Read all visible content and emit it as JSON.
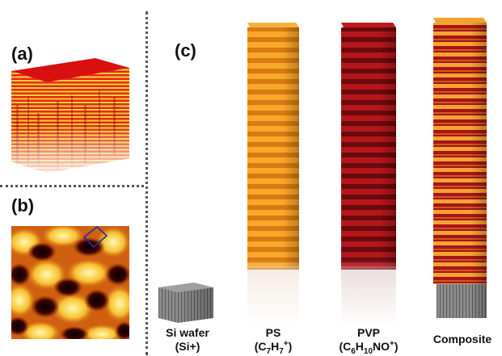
{
  "panels": {
    "a": {
      "label": "(a)",
      "top_color": "#d01010",
      "layer_light": "#ffcc33",
      "layer_dark": "#e03010"
    },
    "b": {
      "label": "(b)"
    },
    "c": {
      "label": "(c)"
    }
  },
  "columns": [
    {
      "name": "Si wafer",
      "formula": "(Si+)",
      "color_main": "#8a8a8a",
      "color_alt": "#5a5a5a"
    },
    {
      "name": "PS",
      "formula_parts": [
        "(C",
        "7",
        "H",
        "7",
        "+",
        ")"
      ],
      "color_main": "#f7a428",
      "color_alt": "#d87810"
    },
    {
      "name": "PVP",
      "formula_parts": [
        "(C",
        "6",
        "H",
        "10",
        "NO",
        "+",
        ")"
      ],
      "color_main": "#b0141a",
      "color_alt": "#6a0a0c"
    },
    {
      "name": "Composite",
      "color_main": "#f2a030",
      "color_alt": "#a8141a"
    }
  ]
}
